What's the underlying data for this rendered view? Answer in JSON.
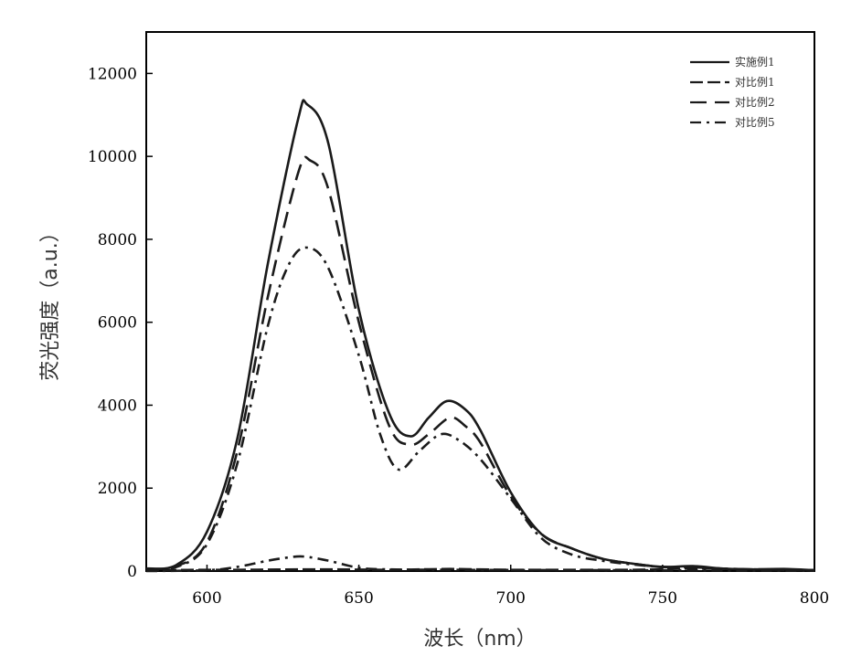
{
  "chart_data": {
    "type": "line",
    "xlabel": "波长（nm）",
    "ylabel": "荧光强度（a.u.）",
    "xlim": [
      580,
      800
    ],
    "ylim": [
      0,
      13000
    ],
    "xticks": [
      600,
      650,
      700,
      750,
      800
    ],
    "yticks": [
      0,
      2000,
      4000,
      6000,
      8000,
      10000,
      12000
    ],
    "legend_position": "top-right",
    "grid": false,
    "series": [
      {
        "name": "实施例1",
        "dash": "solid",
        "x": [
          580,
          590,
          600,
          610,
          620,
          630,
          633,
          640,
          650,
          660,
          667,
          673,
          679,
          685,
          690,
          700,
          710,
          720,
          730,
          740,
          750,
          760,
          770,
          780,
          790,
          800
        ],
        "y": [
          60,
          150,
          950,
          3200,
          7400,
          10900,
          11250,
          10300,
          6300,
          3800,
          3250,
          3700,
          4100,
          3900,
          3400,
          1900,
          900,
          550,
          300,
          180,
          100,
          120,
          60,
          40,
          50,
          20
        ]
      },
      {
        "name": "对比例1",
        "dash": "long-dash",
        "x": [
          580,
          590,
          600,
          610,
          620,
          630,
          640,
          650,
          660,
          670,
          680,
          690,
          700,
          720,
          740,
          760,
          780,
          800
        ],
        "y": [
          20,
          25,
          30,
          30,
          35,
          40,
          40,
          35,
          30,
          40,
          50,
          40,
          30,
          30,
          30,
          60,
          40,
          20
        ]
      },
      {
        "name": "对比例2",
        "dash": "dash",
        "x": [
          580,
          590,
          600,
          610,
          620,
          630,
          634,
          640,
          650,
          660,
          667,
          673,
          680,
          685,
          690,
          700,
          710,
          720,
          730,
          740,
          750,
          760,
          770,
          780,
          790,
          800
        ],
        "y": [
          50,
          120,
          700,
          2900,
          6600,
          9600,
          9900,
          9200,
          6000,
          3500,
          3050,
          3300,
          3700,
          3500,
          3100,
          1800,
          900,
          550,
          300,
          180,
          100,
          90,
          60,
          40,
          40,
          20
        ]
      },
      {
        "name": "对比例5",
        "dash": "dash-dot",
        "x": [
          580,
          590,
          600,
          610,
          620,
          627,
          633,
          640,
          650,
          657,
          663,
          670,
          677,
          683,
          690,
          700,
          710,
          720,
          730,
          740,
          750,
          760,
          770,
          780,
          790,
          800
        ],
        "y": [
          40,
          100,
          650,
          2600,
          5900,
          7400,
          7800,
          7300,
          5200,
          3300,
          2450,
          2900,
          3300,
          3150,
          2700,
          1750,
          800,
          400,
          250,
          160,
          100,
          90,
          60,
          40,
          40,
          20
        ]
      },
      {
        "name": "",
        "dash": "dash-dot",
        "x": [
          580,
          600,
          610,
          620,
          627,
          632,
          640,
          650,
          660,
          680,
          700,
          740,
          780,
          800
        ],
        "y": [
          0,
          20,
          100,
          250,
          330,
          350,
          250,
          80,
          40,
          30,
          25,
          20,
          15,
          10
        ]
      }
    ]
  }
}
